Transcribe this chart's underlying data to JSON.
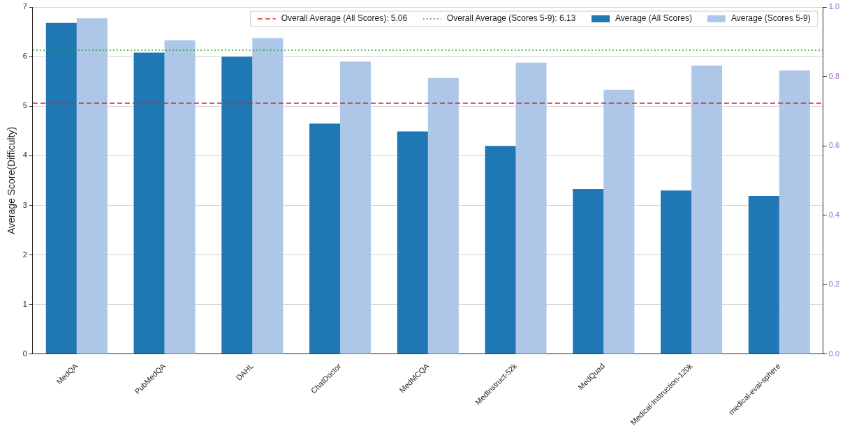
{
  "chart_data": {
    "type": "bar",
    "ylabel": "Average Score(Difficulty)",
    "categories": [
      "MedQA",
      "PubMedQA",
      "DAHL",
      "ChatDoctor",
      "MedMCQA",
      "MedInstruct-52k",
      "MedQuad",
      "Medical-Instruction-120k",
      "medical-eval-sphere"
    ],
    "series": [
      {
        "name": "Average (All Scores)",
        "color": "#1f77b4",
        "values": [
          6.68,
          6.08,
          6.0,
          4.65,
          4.49,
          4.2,
          3.33,
          3.3,
          3.19
        ]
      },
      {
        "name": "Average (Scores 5-9)",
        "color": "#aec7e8",
        "values": [
          6.77,
          6.33,
          6.37,
          5.9,
          5.57,
          5.88,
          5.33,
          5.82,
          5.72
        ]
      }
    ],
    "ylim": [
      0,
      7
    ],
    "yticks": [
      0,
      1,
      2,
      3,
      4,
      5,
      6,
      7
    ],
    "y2lim": [
      0,
      1
    ],
    "y2ticks": [
      {
        "value": 0,
        "label": "0.0"
      },
      {
        "value": 0.2,
        "label": "0.2"
      },
      {
        "value": 0.4,
        "label": "0.4"
      },
      {
        "value": 0.6,
        "label": "0.6"
      },
      {
        "value": 0.8,
        "label": "0.8"
      },
      {
        "value": 1,
        "label": "1.0"
      }
    ],
    "ref_lines": [
      {
        "axis": "y",
        "value": 5.06,
        "label": "Overall Average (All Scores): 5.06",
        "color": "#d62728",
        "line_style": "dashed"
      },
      {
        "axis": "y",
        "value": 6.13,
        "label": "Overall Average (Scores 5-9): 6.13",
        "color": "#2ca02c",
        "line_style": "dotted"
      }
    ],
    "grid": "y",
    "legend": "top right"
  }
}
